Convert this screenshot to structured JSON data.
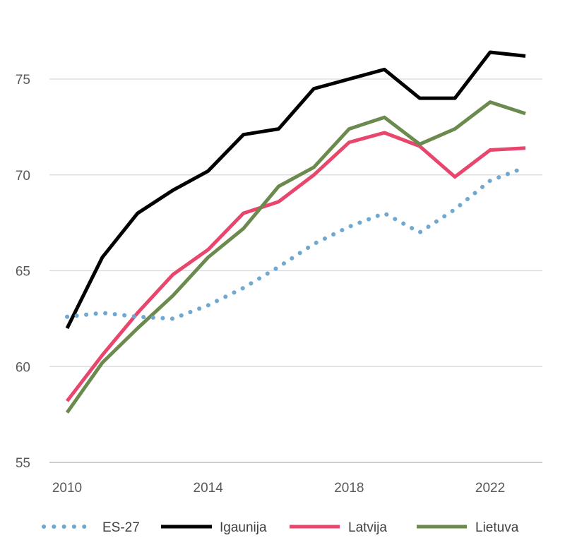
{
  "chart_data": {
    "type": "line",
    "title": "",
    "xlabel": "",
    "ylabel": "",
    "x": [
      2010,
      2011,
      2012,
      2013,
      2014,
      2015,
      2016,
      2017,
      2018,
      2019,
      2020,
      2021,
      2022,
      2023
    ],
    "x_ticks": [
      "2010",
      "2014",
      "2018",
      "2022"
    ],
    "y_ticks": [
      "55",
      "60",
      "65",
      "70",
      "75"
    ],
    "ylim": [
      55,
      77.5
    ],
    "grid": "horizontal",
    "legend_position": "bottom",
    "series": [
      {
        "name": "ES-27",
        "style": "dotted",
        "color": "#6fa8d0",
        "values": [
          62.6,
          62.8,
          62.6,
          62.5,
          63.2,
          64.1,
          65.2,
          66.4,
          67.3,
          68.0,
          67.0,
          68.2,
          69.7,
          70.4
        ]
      },
      {
        "name": "Igaunija",
        "style": "solid",
        "color": "#000000",
        "values": [
          62.0,
          65.7,
          68.0,
          69.2,
          70.2,
          72.1,
          72.4,
          74.5,
          75.0,
          75.5,
          74.0,
          74.0,
          76.4,
          76.2
        ]
      },
      {
        "name": "Latvija",
        "style": "solid",
        "color": "#e8466d",
        "values": [
          58.2,
          60.6,
          62.8,
          64.8,
          66.1,
          68.0,
          68.6,
          70.0,
          71.7,
          72.2,
          71.5,
          69.9,
          71.3,
          71.4
        ]
      },
      {
        "name": "Lietuva",
        "style": "solid",
        "color": "#6b8a4e",
        "values": [
          57.6,
          60.2,
          62.0,
          63.7,
          65.7,
          67.2,
          69.4,
          70.4,
          72.4,
          73.0,
          71.6,
          72.4,
          73.8,
          73.2
        ]
      }
    ]
  }
}
